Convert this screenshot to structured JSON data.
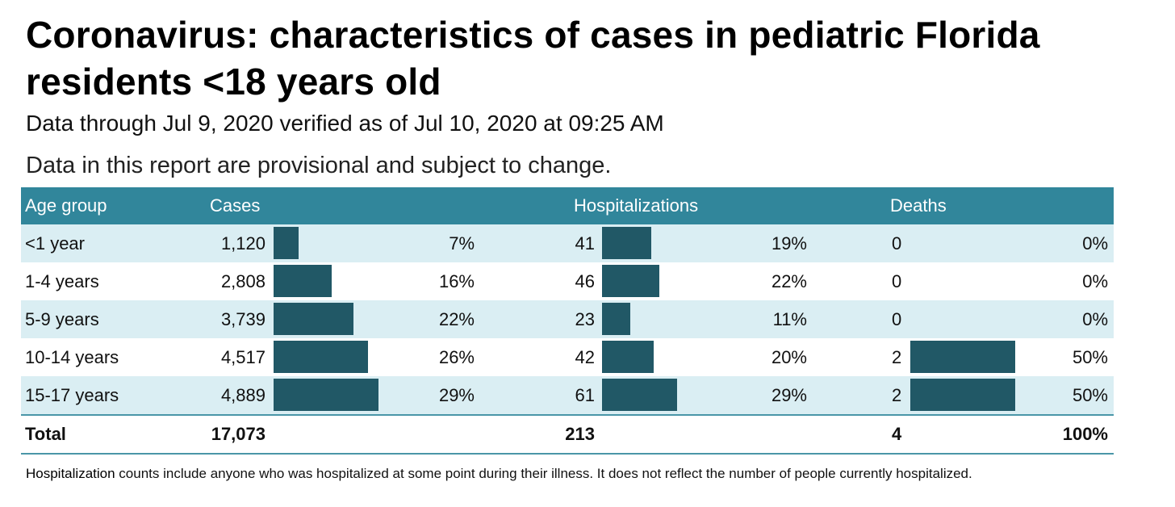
{
  "title": "Coronavirus: characteristics of cases in pediatric Florida residents <18 years old",
  "subtitle": "Data through Jul 9, 2020 verified as of Jul 10, 2020 at 09:25 AM",
  "provisional_note": "Data in this report are provisional and subject to change.",
  "headers": {
    "age_group": "Age group",
    "cases": "Cases",
    "hospitalizations": "Hospitalizations",
    "deaths": "Deaths"
  },
  "colors": {
    "header_bg": "#31869b",
    "shaded_row": "#daeef3",
    "bar": "#215866"
  },
  "chart_data": {
    "type": "table",
    "columns": [
      "Age group",
      "Cases",
      "Hospitalizations",
      "Deaths"
    ],
    "rows": [
      {
        "age": "<1 year",
        "cases": "1,120",
        "cases_pct": "7%",
        "hosp": "41",
        "hosp_pct": "19%",
        "deaths": "0",
        "deaths_pct": "0%"
      },
      {
        "age": "1-4 years",
        "cases": "2,808",
        "cases_pct": "16%",
        "hosp": "46",
        "hosp_pct": "22%",
        "deaths": "0",
        "deaths_pct": "0%"
      },
      {
        "age": "5-9 years",
        "cases": "3,739",
        "cases_pct": "22%",
        "hosp": "23",
        "hosp_pct": "11%",
        "deaths": "0",
        "deaths_pct": "0%"
      },
      {
        "age": "10-14 years",
        "cases": "4,517",
        "cases_pct": "26%",
        "hosp": "42",
        "hosp_pct": "20%",
        "deaths": "2",
        "deaths_pct": "50%"
      },
      {
        "age": "15-17 years",
        "cases": "4,889",
        "cases_pct": "29%",
        "hosp": "61",
        "hosp_pct": "29%",
        "deaths": "2",
        "deaths_pct": "50%"
      }
    ],
    "total": {
      "label": "Total",
      "cases": "17,073",
      "hosp": "213",
      "deaths": "4",
      "deaths_pct": "100%"
    }
  },
  "footnote": {
    "bold_term": "Hospitalization",
    "text": " counts include anyone who was hospitalized at some point during their illness. It does not reflect the number of people currently hospitalized."
  }
}
